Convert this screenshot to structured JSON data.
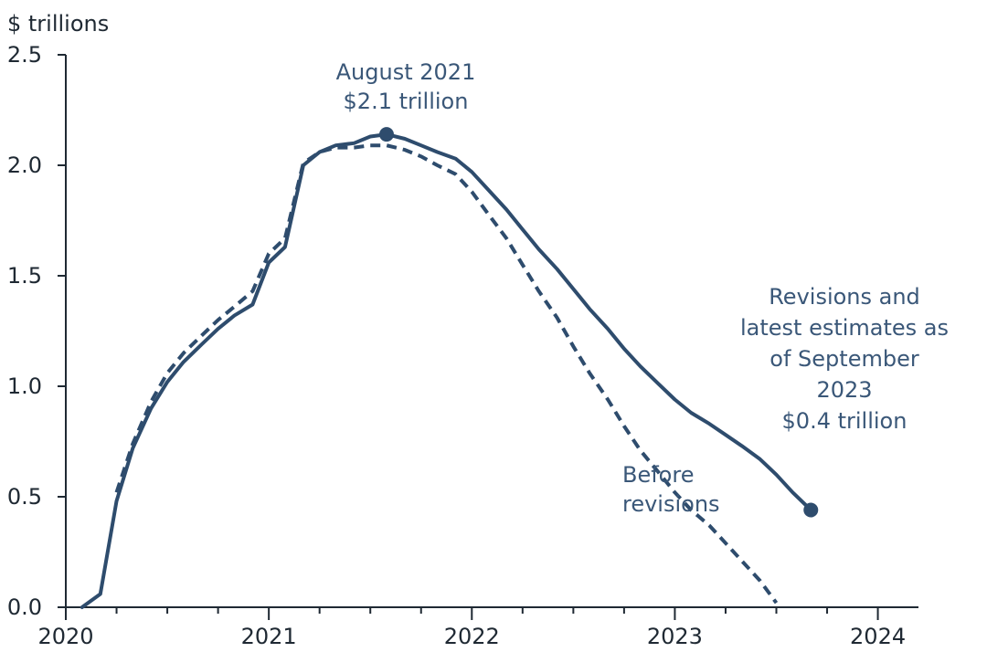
{
  "chart_data": {
    "type": "line",
    "ylabel": "$ trillions",
    "ylim": [
      0,
      2.5
    ],
    "y_ticks": [
      "0.0",
      "0.5",
      "1.0",
      "1.5",
      "2.0",
      "2.5"
    ],
    "y_tick_values": [
      0,
      0.5,
      1.0,
      1.5,
      2.0,
      2.5
    ],
    "xlim": [
      2020,
      2024.2
    ],
    "x_ticks": [
      "2020",
      "2021",
      "2022",
      "2023",
      "2024"
    ],
    "x_tick_values": [
      2020,
      2021,
      2022,
      2023,
      2024
    ],
    "grid": false,
    "colors": {
      "series": "#2e4c6d",
      "axis": "#1f2933",
      "annotation": "#3a5778"
    },
    "series": [
      {
        "id": "revised",
        "style": "solid",
        "x": [
          2020.08,
          2020.17,
          2020.25,
          2020.33,
          2020.42,
          2020.5,
          2020.58,
          2020.67,
          2020.75,
          2020.83,
          2020.92,
          2021.0,
          2021.08,
          2021.17,
          2021.25,
          2021.33,
          2021.42,
          2021.5,
          2021.58,
          2021.67,
          2021.75,
          2021.83,
          2021.92,
          2022.0,
          2022.08,
          2022.17,
          2022.25,
          2022.33,
          2022.42,
          2022.5,
          2022.58,
          2022.67,
          2022.75,
          2022.83,
          2022.92,
          2023.0,
          2023.08,
          2023.17,
          2023.25,
          2023.33,
          2023.42,
          2023.5,
          2023.58,
          2023.67
        ],
        "values": [
          0.0,
          0.06,
          0.48,
          0.72,
          0.9,
          1.02,
          1.11,
          1.19,
          1.26,
          1.32,
          1.37,
          1.56,
          1.63,
          2.0,
          2.06,
          2.09,
          2.1,
          2.13,
          2.14,
          2.12,
          2.09,
          2.06,
          2.03,
          1.97,
          1.89,
          1.8,
          1.71,
          1.62,
          1.53,
          1.44,
          1.35,
          1.26,
          1.17,
          1.09,
          1.01,
          0.94,
          0.88,
          0.83,
          0.78,
          0.73,
          0.67,
          0.6,
          0.52,
          0.44
        ]
      },
      {
        "id": "before-revisions",
        "style": "dashed",
        "x": [
          2020.25,
          2020.33,
          2020.42,
          2020.5,
          2020.58,
          2020.67,
          2020.75,
          2020.83,
          2020.92,
          2021.0,
          2021.08,
          2021.17,
          2021.25,
          2021.33,
          2021.42,
          2021.5,
          2021.58,
          2021.67,
          2021.75,
          2021.83,
          2021.92,
          2022.0,
          2022.08,
          2022.17,
          2022.25,
          2022.33,
          2022.42,
          2022.5,
          2022.58,
          2022.67,
          2022.75,
          2022.83,
          2022.92,
          2023.0,
          2023.08,
          2023.17,
          2023.25,
          2023.33,
          2023.42,
          2023.5
        ],
        "values": [
          0.52,
          0.74,
          0.93,
          1.06,
          1.15,
          1.23,
          1.3,
          1.36,
          1.43,
          1.6,
          1.67,
          2.01,
          2.06,
          2.08,
          2.08,
          2.09,
          2.09,
          2.07,
          2.04,
          2.0,
          1.96,
          1.88,
          1.78,
          1.67,
          1.55,
          1.43,
          1.31,
          1.18,
          1.06,
          0.94,
          0.82,
          0.71,
          0.61,
          0.52,
          0.44,
          0.37,
          0.29,
          0.21,
          0.12,
          0.02
        ]
      }
    ],
    "markers": [
      {
        "x": 2021.58,
        "y": 2.14
      },
      {
        "x": 2023.67,
        "y": 0.44
      }
    ],
    "annotations": [
      {
        "id": "peak",
        "lines": [
          "August 2021",
          "$2.1 trillion"
        ]
      },
      {
        "id": "latest",
        "lines": [
          "Revisions and",
          "latest estimates as",
          "of September",
          "2023",
          "$0.4 trillion"
        ]
      },
      {
        "id": "before",
        "lines": [
          "Before",
          "revisions"
        ]
      }
    ]
  }
}
